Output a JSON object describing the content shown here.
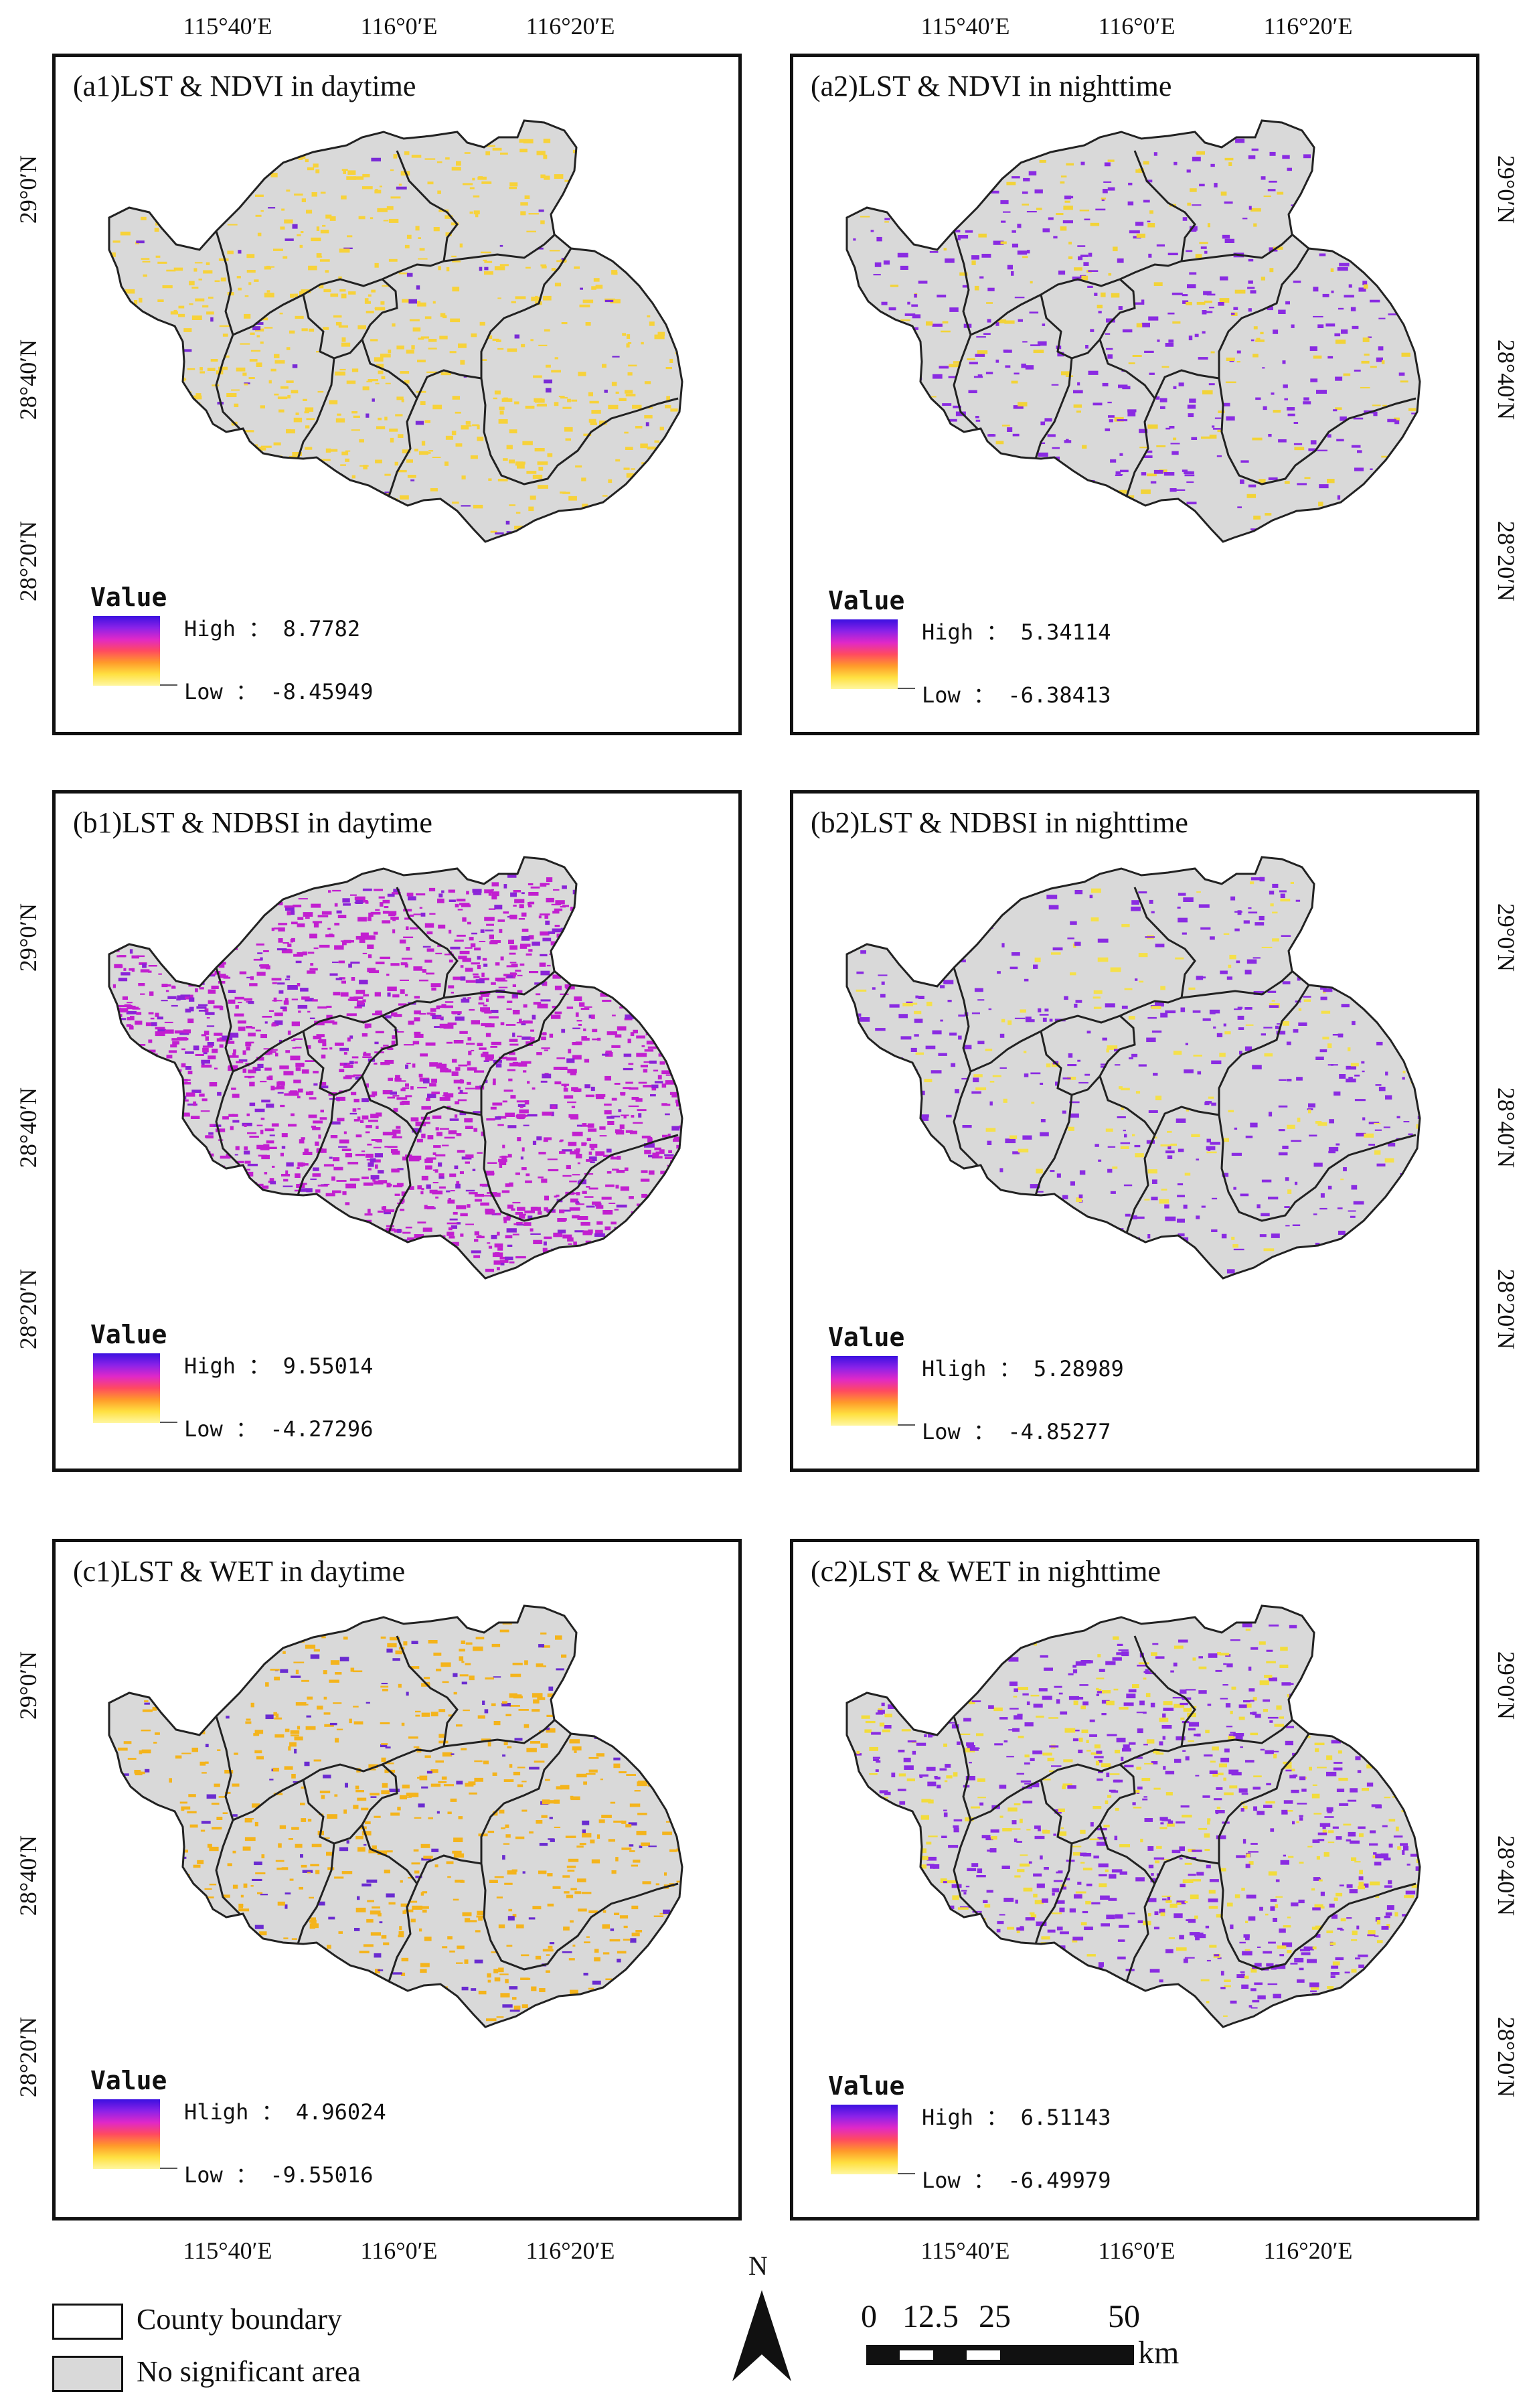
{
  "top_axis": {
    "lon_labels": [
      "115°40′E",
      "116°0′E",
      "116°20′E"
    ]
  },
  "bottom_axis": {
    "lon_labels": [
      "115°40′E",
      "116°0′E",
      "116°20′E"
    ]
  },
  "lat_labels": [
    "29°0′N",
    "28°40′N",
    "28°20′N"
  ],
  "legend_title": "Value",
  "panels": [
    {
      "title": "(a1)LST & NDVI in daytime",
      "high": "High ： 8.7782",
      "low": "Low ： -8.45949",
      "pattern": "yellow",
      "colors": [
        "#f7d23a",
        "#7a2bd6"
      ]
    },
    {
      "title": "(a2)LST & NDVI in nighttime",
      "high": "High ： 5.34114",
      "low": "Low ： -6.38413",
      "pattern": "purple-light",
      "colors": [
        "#8a2be2",
        "#f2d338"
      ]
    },
    {
      "title": "(b1)LST & NDBSI in daytime",
      "high": "High ： 9.55014",
      "low": "Low ： -4.27296",
      "pattern": "magenta",
      "colors": [
        "#c21fd0",
        "#8a23d8"
      ]
    },
    {
      "title": "(b2)LST & NDBSI in nighttime",
      "high": "Hligh ： 5.28989",
      "low": "Low ： -4.85277",
      "pattern": "purple-light",
      "colors": [
        "#8a2be2",
        "#f5e04a"
      ]
    },
    {
      "title": "(c1)LST & WET in daytime",
      "high": "Hligh ： 4.96024",
      "low": "Low ： -9.55016",
      "pattern": "orange",
      "colors": [
        "#f4b41c",
        "#6a2bd0"
      ]
    },
    {
      "title": "(c2)LST & WET in nighttime",
      "high": "High ： 6.51143",
      "low": "Low ： -6.49979",
      "pattern": "purple",
      "colors": [
        "#8a2be2",
        "#f2dc3c"
      ]
    }
  ],
  "key": {
    "county_boundary": "County boundary",
    "no_significant": "No significant area"
  },
  "north_label": "N",
  "scale": {
    "labels": [
      "0",
      "12.5",
      "25",
      "50"
    ],
    "unit": "km"
  },
  "colors": {
    "no_significant_fill": "#d9d9d9",
    "ramp": [
      "#3b10e0",
      "#8a22e8",
      "#e028c8",
      "#ff4a60",
      "#ff9a2a",
      "#ffe040",
      "#fff7a0"
    ]
  }
}
